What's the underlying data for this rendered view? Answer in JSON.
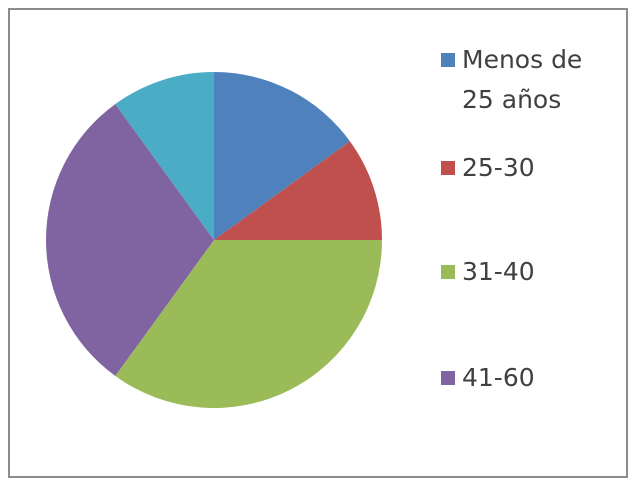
{
  "chart_data": {
    "type": "pie",
    "categories": [
      "Menos de 25 años",
      "25-30",
      "31-40",
      "41-60",
      null
    ],
    "values": [
      15,
      10,
      35,
      30,
      10
    ],
    "colors": [
      "#4f81bd",
      "#c0504d",
      "#9bbb59",
      "#8064a2",
      "#4bacc6"
    ],
    "legend": "right"
  }
}
